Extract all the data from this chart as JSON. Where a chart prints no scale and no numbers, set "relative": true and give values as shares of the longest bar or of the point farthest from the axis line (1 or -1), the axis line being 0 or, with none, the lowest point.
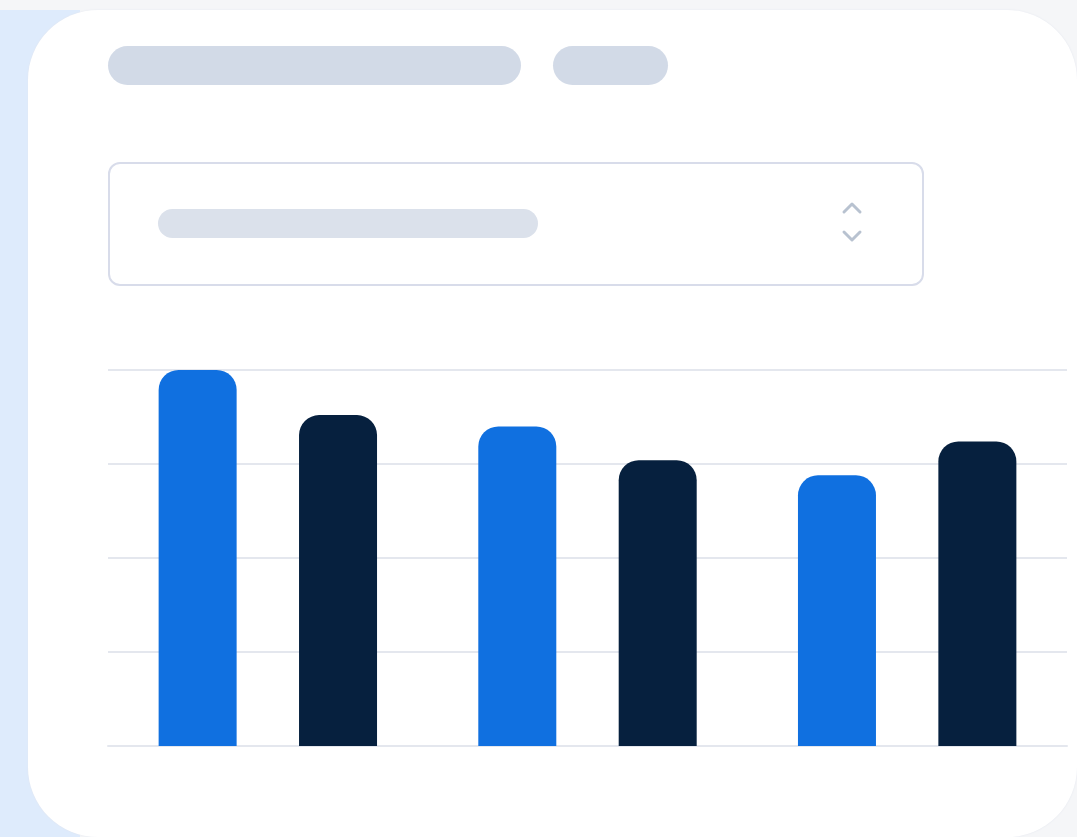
{
  "chart_data": {
    "type": "bar",
    "relative": true,
    "grid": "y",
    "categories": [
      null,
      null,
      null
    ],
    "series": [
      {
        "color": "#1070e0",
        "values": [
          1,
          0.85,
          0.72
        ]
      },
      {
        "color": "#06203e",
        "values": [
          0.88,
          0.76,
          0.81
        ]
      }
    ]
  }
}
